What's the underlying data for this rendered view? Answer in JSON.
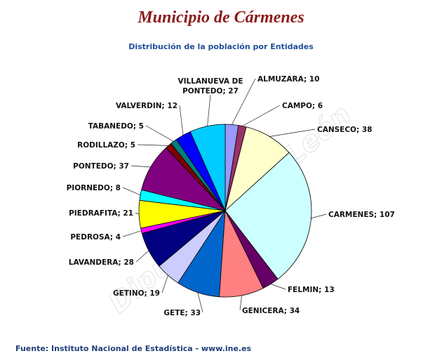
{
  "page": {
    "title": "Municipio de Cármenes",
    "subtitle": "Distribución de la población por Entidades",
    "source": "Fuente: Instituto Nacional de Estadística - www.ine.es",
    "watermark": "Diputación de León"
  },
  "chart_data": {
    "type": "pie",
    "title": "Distribución de la población por Entidades",
    "slices": [
      {
        "label": "ALMUZARA; 10",
        "name": "ALMUZARA",
        "value": 10,
        "color": "#9999ff"
      },
      {
        "label": "CAMPO; 6",
        "name": "CAMPO",
        "value": 6,
        "color": "#993366"
      },
      {
        "label": "CANSECO; 38",
        "name": "CANSECO",
        "value": 38,
        "color": "#ffffcc"
      },
      {
        "label": "CARMENES; 107",
        "name": "CARMENES",
        "value": 107,
        "color": "#ccffff"
      },
      {
        "label": "FELMIN; 13",
        "name": "FELMIN",
        "value": 13,
        "color": "#660066"
      },
      {
        "label": "GENICERA; 34",
        "name": "GENICERA",
        "value": 34,
        "color": "#ff8080"
      },
      {
        "label": "GETE; 33",
        "name": "GETE",
        "value": 33,
        "color": "#0066cc"
      },
      {
        "label": "GETINO; 19",
        "name": "GETINO",
        "value": 19,
        "color": "#ccccff"
      },
      {
        "label": "LAVANDERA; 28",
        "name": "LAVANDERA",
        "value": 28,
        "color": "#000080"
      },
      {
        "label": "PEDROSA; 4",
        "name": "PEDROSA",
        "value": 4,
        "color": "#ff00ff"
      },
      {
        "label": "PIEDRAFITA; 21",
        "name": "PIEDRAFITA",
        "value": 21,
        "color": "#ffff00"
      },
      {
        "label": "PIORNEDO; 8",
        "name": "PIORNEDO",
        "value": 8,
        "color": "#00ffff"
      },
      {
        "label": "PONTEDO; 37",
        "name": "PONTEDO",
        "value": 37,
        "color": "#800080"
      },
      {
        "label": "RODILLAZO; 5",
        "name": "RODILLAZO",
        "value": 5,
        "color": "#800000"
      },
      {
        "label": "TABANEDO; 5",
        "name": "TABANEDO",
        "value": 5,
        "color": "#008080"
      },
      {
        "label": "VALVERDIN; 12",
        "name": "VALVERDIN",
        "value": 12,
        "color": "#0000ff"
      },
      {
        "label": "VILLANUEVA DE PONTEDO; 27",
        "name": "VILLANUEVA DE PONTEDO",
        "value": 27,
        "color": "#00ccff"
      }
    ],
    "legend": "none"
  }
}
